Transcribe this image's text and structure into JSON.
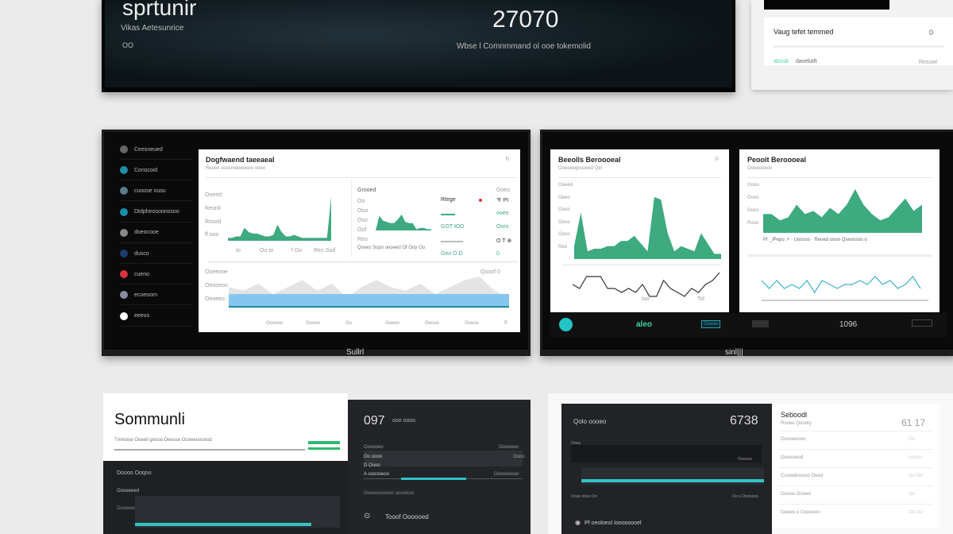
{
  "hero": {
    "title": "sprtunir",
    "subtitle": "Vikas Aetesunrice",
    "small": "OO",
    "value": "27070",
    "caption": "Wbse l Comnmmand ol ooe tokemolid"
  },
  "top_right": {
    "title": "Vaug tefet temmed",
    "icon": "0",
    "label_green": "abvub",
    "label": "dasekaft",
    "right": "Resuwl"
  },
  "monitor_a": {
    "sidebar": [
      {
        "label": "Ceesneued",
        "color": "#666"
      },
      {
        "label": "Conscoid",
        "color": "#1e8fa8"
      },
      {
        "label": "cuoose ousu",
        "color": "#5b7c8a"
      },
      {
        "label": "Dtdpheosoonosoo",
        "color": "#1e8fa8"
      },
      {
        "label": "doeocooe",
        "color": "#888"
      },
      {
        "label": "dusco",
        "color": "#1d3b6e"
      },
      {
        "label": "cueno",
        "color": "#d9343f"
      },
      {
        "label": "ecoeoorn",
        "color": "#8a8aa0"
      },
      {
        "label": "eeeus",
        "color": "#ffffff"
      }
    ],
    "title": "Dogfwaend taeeaeal",
    "subtitle": "Reueil ooosmeeeeeeo ooeo",
    "chart1": {
      "values": [
        2,
        2,
        3,
        3,
        9,
        6,
        5,
        5,
        4,
        3,
        3,
        4,
        11,
        6,
        3,
        3,
        4,
        3,
        2,
        2,
        2,
        2,
        2,
        2,
        2,
        30
      ],
      "color": "#3daa7f",
      "ylabels": [
        "Ooeed",
        "Reonil",
        "Rosod",
        "ff ooo"
      ],
      "xlabels": [
        "to",
        "Oo to",
        "f Oo",
        "Reo Sod"
      ]
    },
    "panel": {
      "title": "Grooed",
      "ylabels": [
        "Oo",
        "Ooo",
        "Oso",
        "Oof",
        "Reo"
      ],
      "footer": "Qoses Sopo oeoeed Of Ooy Oo",
      "chart": {
        "values": [
          0,
          12,
          8,
          7,
          6,
          6,
          9,
          13,
          7,
          6,
          6,
          1,
          2,
          2,
          1,
          1
        ],
        "color": "#3daa7f"
      }
    },
    "stats": [
      {
        "label": "Rtege",
        "value": "℉ PI",
        "color": "#333"
      },
      {
        "label": "",
        "value": "ooeo",
        "color": "#3daa7f"
      },
      {
        "label": "GOT ЮO",
        "value": "Ooro",
        "color": "#3daa7f"
      },
      {
        "label": "",
        "value": "O T ⊕",
        "color": "#333"
      },
      {
        "label": "Geo O D",
        "value": "0",
        "color": "#3daa7f"
      }
    ],
    "stats_header": "Ooeo",
    "bottom": {
      "ylabels": [
        "Ooeeooe",
        "Oeooeoo",
        "Oeoeeo"
      ],
      "header": "Qooof 0",
      "xlabels": [
        "Oooeoo",
        "Ooooo",
        "Oo",
        "Ooeeo",
        "Oeooo",
        "Ooeoo",
        "ff"
      ],
      "grey": [
        6,
        5,
        7,
        4,
        6,
        8,
        5,
        7,
        3,
        6,
        8,
        6,
        5,
        7,
        4,
        6,
        8,
        9,
        5,
        3
      ],
      "color_fill": "#86c5ee",
      "color_line": "#1f8f9d"
    },
    "brand": "Sullrl"
  },
  "monitor_b": {
    "left": {
      "title": "Beeolls Beroooeal",
      "subtitle": "Ooeseegosoeed Qel",
      "ylabels": [
        "Ooeed",
        "Oeeo",
        "Oooo",
        "Oooo",
        "Oooo",
        "Reo"
      ],
      "area": [
        5,
        18,
        3,
        4,
        4,
        5,
        5,
        7,
        7,
        9,
        6,
        3,
        24,
        23,
        10,
        3,
        5,
        4,
        3,
        10,
        6,
        2,
        2
      ],
      "color": "#3daa7f",
      "line": [
        3,
        2,
        5,
        5,
        5,
        2,
        2,
        1,
        2,
        1,
        3,
        0,
        0,
        4,
        2,
        1,
        0,
        2,
        1,
        3,
        4,
        6
      ],
      "labels": [
        "Ioo",
        "Tsf"
      ]
    },
    "right": {
      "title": "Peooit Beroooeal",
      "subtitle": "Ooeeooeoo",
      "ylabels": [
        "Oooo",
        "Oooo",
        "Oooo",
        "Rooo"
      ],
      "area": [
        6,
        6,
        4,
        5,
        9,
        6,
        7,
        5,
        8,
        6,
        9,
        14,
        9,
        6,
        4,
        5,
        8,
        11,
        7,
        9
      ],
      "color": "#3daa7f",
      "legend": "Pr _/Pepo ↗ · Uoosso · Reoed oooo Qseossoo o",
      "line": [
        3,
        1,
        3,
        1,
        2,
        1,
        3,
        0,
        3,
        2,
        1,
        2,
        2,
        3,
        2,
        4,
        2,
        3,
        1,
        2,
        4,
        1
      ],
      "line_color": "#3bb0d0"
    },
    "footer": {
      "status": "aleo",
      "badge": "Ooooo",
      "value": "1096"
    },
    "brand": "sinl|||"
  },
  "bottom_left": {
    "title": "Sommunli",
    "subtitle": "Tmmooe Ooeeil goooo Deesse Oooeeoooood",
    "dark_title": "Doooo Ooqoo",
    "dark_label": "Oooeeeed",
    "dark_label2": "Oooeeeoo",
    "card": {
      "value": "097",
      "unit": "ooo oooo",
      "top_left": "Oooooeo",
      "top_right": "Ooooooo",
      "rows": [
        "Oo oooo",
        "D Oooo",
        "A oooooeoo"
      ],
      "right_rows": [
        "Oooo",
        "Ooooooooo"
      ],
      "footer": "Ooeeooooooo ooooooo",
      "action": "Tooof Oooooed"
    }
  },
  "bottom_right": {
    "card": {
      "title": "Qolo oooeo",
      "value": "6738",
      "label": "Oooo",
      "label2": "Oooooo",
      "xlabels": [
        "Oooo oooo Oo",
        "Oo o Ooooooo"
      ],
      "footer": "Pf oeoloeol Ioooooooel"
    },
    "list": {
      "title": "Seboodl",
      "subtitle": "Rooee Qoooty",
      "value": "61 17",
      "rows": [
        {
          "label": "Ooooeoooo",
          "value": "Oo"
        },
        {
          "label": "Oooeoeod",
          "value": "ooooo"
        },
        {
          "label": "Cooeelinoooo Deed",
          "value": "Oo Oo"
        },
        {
          "label": "Ooooo Oooed",
          "value": "Oo"
        },
        {
          "label": "Ioeeeo o Ooooeoo",
          "value": "Oo Oo"
        }
      ]
    }
  }
}
